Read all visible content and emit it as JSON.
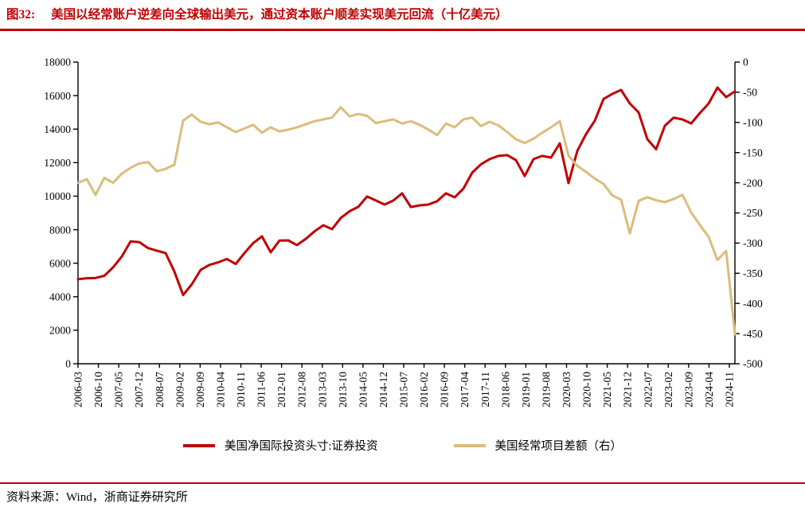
{
  "header": {
    "figure_label": "图32:",
    "title": "美国以经常账户逆差向全球输出美元，通过资本账户顺差实现美元回流（十亿美元）",
    "accent_color": "#c00000"
  },
  "footer": {
    "source_label": "资料来源：Wind，浙商证券研究所"
  },
  "chart_data": {
    "type": "line",
    "grid": false,
    "legend_position": "bottom",
    "x_range": [
      "2006-03",
      "2024-11"
    ],
    "x_tick_labels": [
      "2006-03",
      "2006-10",
      "2007-05",
      "2007-12",
      "2008-07",
      "2009-02",
      "2009-09",
      "2010-04",
      "2010-11",
      "2011-06",
      "2012-01",
      "2012-08",
      "2013-03",
      "2013-10",
      "2014-05",
      "2014-12",
      "2015-07",
      "2016-02",
      "2016-09",
      "2017-04",
      "2017-11",
      "2018-06",
      "2019-01",
      "2019-08",
      "2020-03",
      "2020-10",
      "2021-05",
      "2021-12",
      "2022-07",
      "2023-02",
      "2023-09",
      "2024-04",
      "2024-11"
    ],
    "left_axis": {
      "min": 0,
      "max": 18000,
      "step": 2000,
      "tick_labels": [
        "0",
        "2000",
        "4000",
        "6000",
        "8000",
        "10000",
        "12000",
        "14000",
        "16000",
        "18000"
      ]
    },
    "right_axis": {
      "min": -500,
      "max": 0,
      "step": 50,
      "tick_labels": [
        "0",
        "-50",
        "-100",
        "-150",
        "-200",
        "-250",
        "-300",
        "-350",
        "-400",
        "-450",
        "-500"
      ]
    },
    "series": [
      {
        "name": "美国净国际投资头寸:证券投资",
        "axis": "left",
        "color": "#c00000",
        "values": [
          5050,
          5100,
          5120,
          5250,
          5750,
          6400,
          7300,
          7250,
          6900,
          6750,
          6600,
          5500,
          4100,
          4750,
          5600,
          5900,
          6050,
          6250,
          5950,
          6600,
          7200,
          7600,
          6650,
          7350,
          7360,
          7080,
          7450,
          7900,
          8265,
          8030,
          8700,
          9100,
          9360,
          9980,
          9740,
          9500,
          9740,
          10170,
          9350,
          9450,
          9500,
          9700,
          10170,
          9930,
          10450,
          11400,
          11900,
          12210,
          12400,
          12450,
          12150,
          11200,
          12210,
          12400,
          12300,
          13150,
          10780,
          12700,
          13700,
          14500,
          15800,
          16100,
          16340,
          15530,
          15000,
          13400,
          12800,
          14200,
          14680,
          14580,
          14340,
          14960,
          15530,
          16480,
          15910,
          16250
        ]
      },
      {
        "name": "美国经常项目差额（右）",
        "axis": "right",
        "color": "#d9bd7a",
        "values": [
          -200,
          -194,
          -220,
          -192,
          -200,
          -185,
          -175,
          -168,
          -166,
          -181,
          -177,
          -170,
          -97,
          -87,
          -99,
          -103,
          -100,
          -108,
          -116,
          -110,
          -104,
          -117,
          -108,
          -115,
          -112,
          -108,
          -103,
          -98,
          -95,
          -92,
          -75,
          -90,
          -86,
          -89,
          -101,
          -98,
          -95,
          -102,
          -98,
          -104,
          -112,
          -121,
          -102,
          -108,
          -95,
          -92,
          -106,
          -99,
          -105,
          -116,
          -128,
          -134,
          -127,
          -117,
          -108,
          -98,
          -155,
          -172,
          -182,
          -193,
          -202,
          -221,
          -228,
          -284,
          -230,
          -224,
          -229,
          -232,
          -227,
          -220,
          -249,
          -270,
          -290,
          -328,
          -313,
          -451
        ]
      }
    ]
  }
}
